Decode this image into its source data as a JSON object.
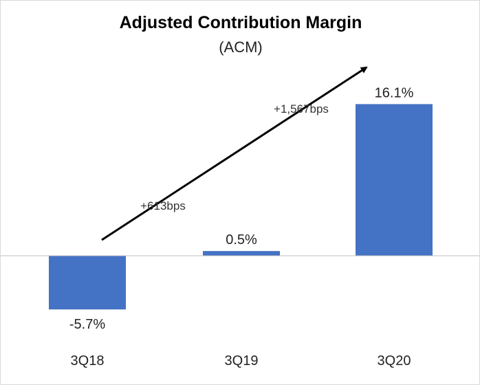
{
  "chart_data": {
    "type": "bar",
    "title": "Adjusted Contribution Margin",
    "subtitle": "(ACM)",
    "categories": [
      "3Q18",
      "3Q19",
      "3Q20"
    ],
    "values": [
      -5.7,
      0.5,
      16.1
    ],
    "data_labels": [
      "-5.7%",
      "0.5%",
      "16.1%"
    ],
    "unit": "%",
    "ylim": [
      -5.7,
      16.1
    ],
    "xlabel": "",
    "ylabel": "",
    "grid": false,
    "legend": "none",
    "annotations": [
      {
        "text": "+613bps",
        "from": "3Q18",
        "to": "3Q19"
      },
      {
        "text": "+1,567bps",
        "from": "3Q19",
        "to": "3Q20"
      }
    ],
    "colors": {
      "bar": "#4472C4",
      "zero_line": "#bfbfbf",
      "arrow": "#000000"
    }
  }
}
